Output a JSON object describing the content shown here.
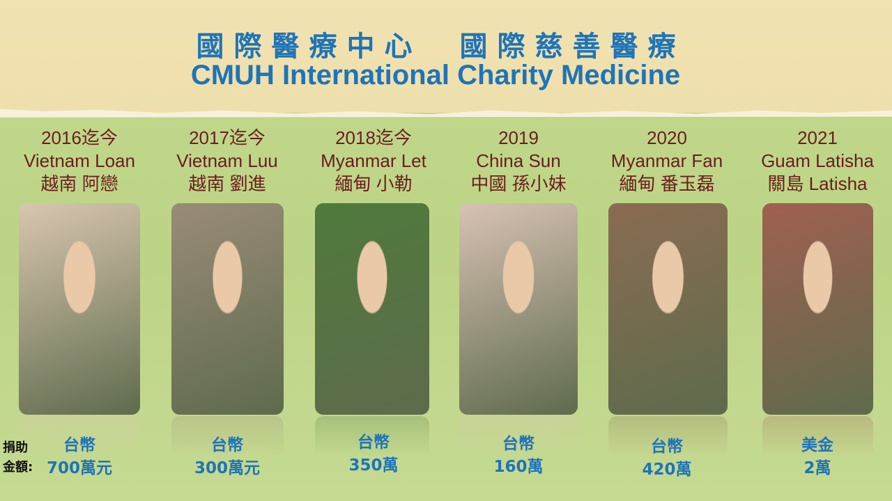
{
  "header": {
    "title_zh": "國際醫療中心　國際慈善醫療",
    "title_en": "CMUH International Charity Medicine"
  },
  "donation_label": [
    "捐助",
    "金額:"
  ],
  "patients": [
    {
      "year": "2016迄今",
      "name_en": "Vietnam Loan",
      "name_zh": "越南 阿戀",
      "currency": "台幣",
      "amount": "700萬元",
      "photo_color": "#d9c6b0"
    },
    {
      "year": "2017迄今",
      "name_en": "Vietnam Luu",
      "name_zh": "越南 劉進",
      "currency": "台幣",
      "amount": "300萬元",
      "photo_color": "#9a8c78"
    },
    {
      "year": "2018迄今",
      "name_en": "Myanmar Let",
      "name_zh": "緬甸 小勒",
      "currency": "台幣",
      "amount": "350萬",
      "photo_color": "#4f7a3c"
    },
    {
      "year": "2019",
      "name_en": "China Sun",
      "name_zh": "中國 孫小妹",
      "currency": "台幣",
      "amount": "160萬",
      "photo_color": "#d8c2b4"
    },
    {
      "year": "2020",
      "name_en": "Myanmar Fan",
      "name_zh": "緬甸 番玉磊",
      "currency": "台幣",
      "amount": "420萬",
      "photo_color": "#8a6c52"
    },
    {
      "year": "2021",
      "name_en": "Guam Latisha",
      "name_zh": "關島 Latisha",
      "currency": "美金",
      "amount": "2萬",
      "photo_color": "#a06050"
    }
  ]
}
